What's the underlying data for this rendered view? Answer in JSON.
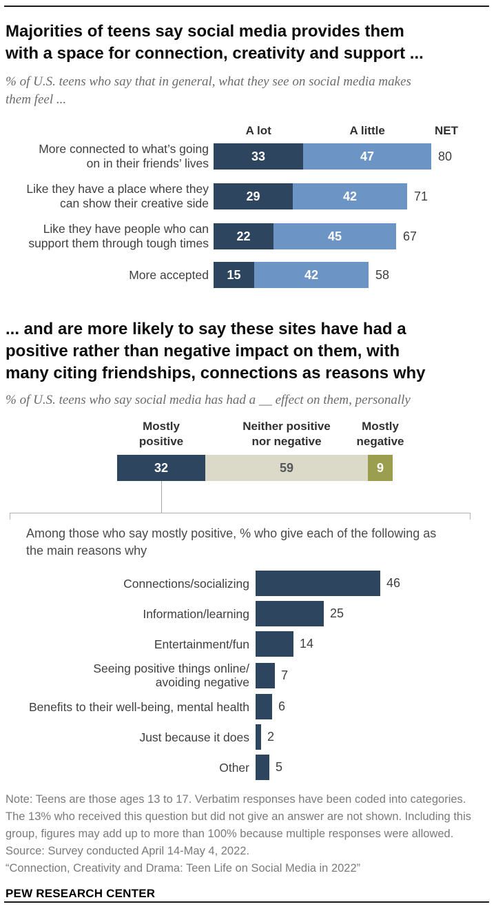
{
  "colors": {
    "navy": "#2e4560",
    "light_blue": "#6c95c6",
    "beige": "#dbd9c8",
    "olive": "#9a9e4e",
    "beige_text": "#57565a",
    "white_text": "#ffffff"
  },
  "chart_data": [
    {
      "type": "bar",
      "orientation": "horizontal",
      "stacked": true,
      "title_lines": [
        "Majorities of teens say social media provides them",
        "with a space for connection, creativity and support ..."
      ],
      "subtitle_lines": [
        "% of U.S. teens who say that in general, what they see on social media makes",
        "them feel ..."
      ],
      "col_headers": [
        "A lot",
        "A little",
        "NET"
      ],
      "xlim": [
        0,
        100
      ],
      "rows": [
        {
          "label_lines": [
            "More connected to what’s going",
            "on in their friends’ lives"
          ],
          "a_lot": 33,
          "a_little": 47,
          "net": 80
        },
        {
          "label_lines": [
            "Like they have a place where they",
            "can show their creative side"
          ],
          "a_lot": 29,
          "a_little": 42,
          "net": 71
        },
        {
          "label_lines": [
            "Like they have people who can",
            "support them through tough times"
          ],
          "a_lot": 22,
          "a_little": 45,
          "net": 67
        },
        {
          "label_lines": [
            "More accepted"
          ],
          "a_lot": 15,
          "a_little": 42,
          "net": 58
        }
      ]
    },
    {
      "type": "bar",
      "orientation": "horizontal",
      "stacked": true,
      "title_lines": [
        "... and are more likely to say these sites have had a",
        "positive rather than negative impact on them, with",
        "many citing friendships, connections as reasons why"
      ],
      "subtitle_lines": [
        "% of U.S. teens who say social media has had a __ effect on them, personally"
      ],
      "xlim": [
        0,
        100
      ],
      "segments": [
        {
          "label_lines": [
            "Mostly",
            "positive"
          ],
          "value": 32,
          "color_key": "navy",
          "text_color_key": "white_text"
        },
        {
          "label_lines": [
            "Neither positive",
            "nor negative"
          ],
          "value": 59,
          "color_key": "beige",
          "text_color_key": "beige_text"
        },
        {
          "label_lines": [
            "Mostly",
            "negative"
          ],
          "value": 9,
          "color_key": "olive",
          "text_color_key": "white_text"
        }
      ]
    },
    {
      "type": "bar",
      "orientation": "horizontal",
      "stacked": false,
      "lead_in_lines": [
        "Among those who say mostly positive, % who give each of the following as",
        "the main reasons why"
      ],
      "xlim": [
        0,
        100
      ],
      "rows": [
        {
          "label_lines": [
            "Connections/socializing"
          ],
          "value": 46
        },
        {
          "label_lines": [
            "Information/learning"
          ],
          "value": 25
        },
        {
          "label_lines": [
            "Entertainment/fun"
          ],
          "value": 14
        },
        {
          "label_lines": [
            "Seeing positive things online/",
            "avoiding negative"
          ],
          "value": 7
        },
        {
          "label_lines": [
            "Benefits to their well-being, mental health"
          ],
          "value": 6
        },
        {
          "label_lines": [
            "Just because it does"
          ],
          "value": 2
        },
        {
          "label_lines": [
            "Other"
          ],
          "value": 5
        }
      ]
    }
  ],
  "footer": {
    "note_lines": [
      "Note: Teens are those ages 13 to 17. Verbatim responses have been coded into categories.",
      "The 13% who received this question but did not give an answer are not shown. Including this",
      "group, figures may add up to more than 100% because multiple responses were allowed.",
      "Source: Survey conducted April 14-May 4, 2022.",
      "“Connection, Creativity and Drama: Teen Life on Social Media in 2022”"
    ],
    "brand": "PEW RESEARCH CENTER"
  }
}
